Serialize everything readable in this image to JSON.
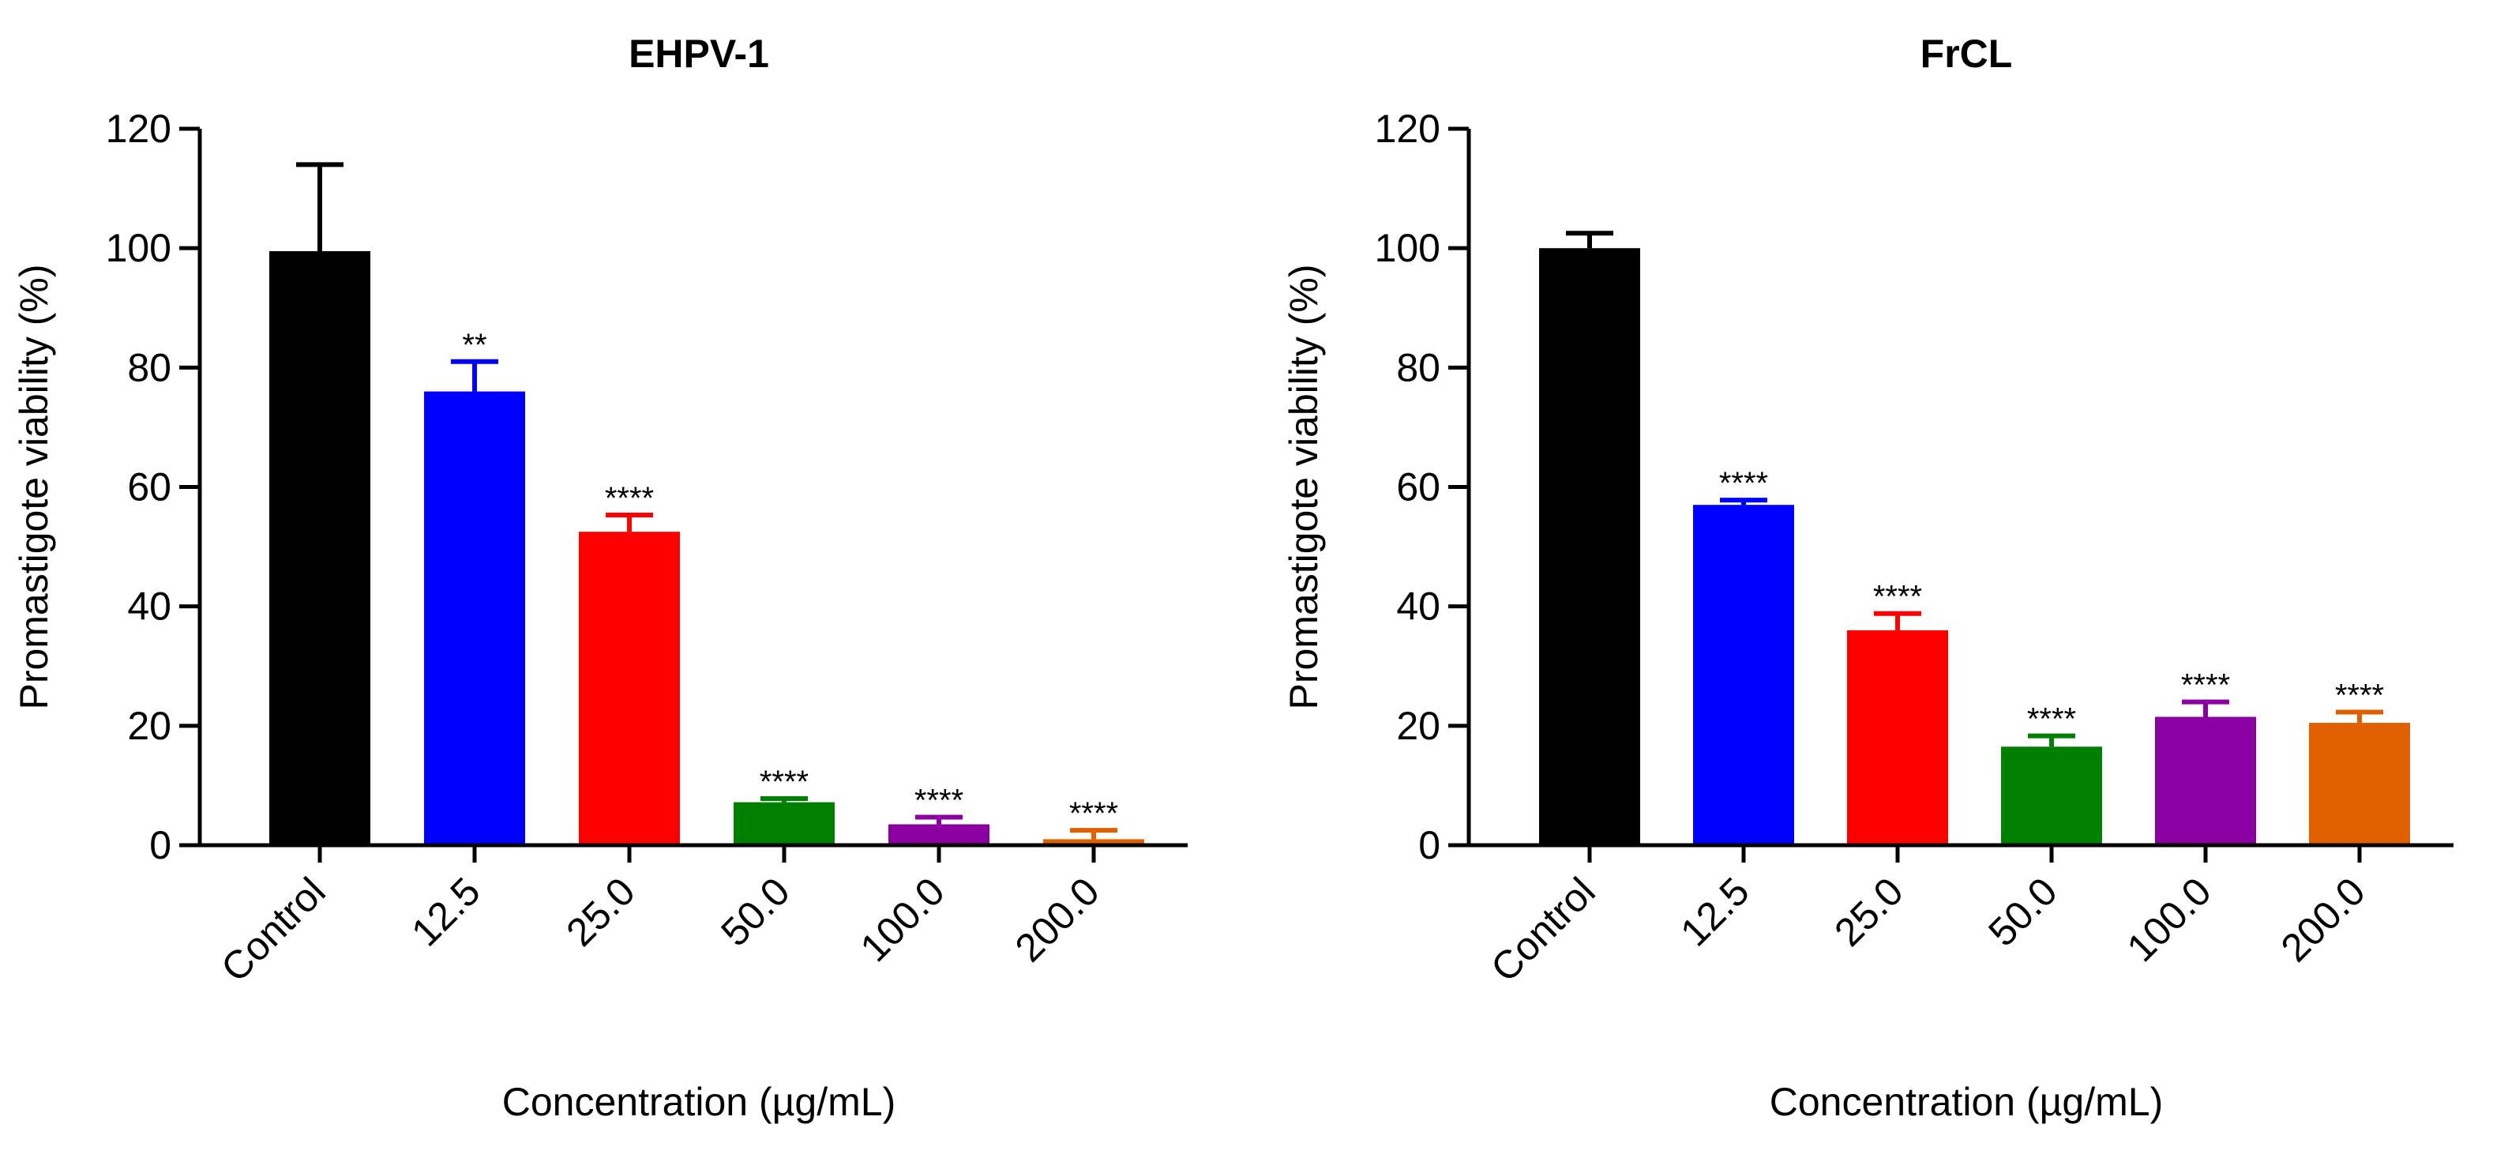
{
  "colors": {
    "axis": "#000000",
    "Control": "#000000",
    "12.5": "#0000FF",
    "25.0": "#FF0000",
    "50.0": "#008000",
    "100.0": "#8B00A0",
    "200.0": "#E06000"
  },
  "chart_data": [
    {
      "type": "bar",
      "title": "EHPV-1",
      "xlabel": "Concentration (µg/mL)",
      "ylabel": "Promastigote viability (%)",
      "ylim": [
        0,
        120
      ],
      "yticks": [
        0,
        20,
        40,
        60,
        80,
        100,
        120
      ],
      "categories": [
        "Control",
        "12.5",
        "25.0",
        "50.0",
        "100.0",
        "200.0"
      ],
      "values": [
        99.5,
        76,
        52.5,
        7.2,
        3.5,
        1
      ],
      "errors": [
        14.5,
        5,
        2.8,
        0.6,
        1.2,
        1.5
      ],
      "significance": [
        "",
        "**",
        "****",
        "****",
        "****",
        "****"
      ]
    },
    {
      "type": "bar",
      "title": "FrCL",
      "xlabel": "Concentration (µg/mL)",
      "ylabel": "Promastigote viability (%)",
      "ylim": [
        0,
        120
      ],
      "yticks": [
        0,
        20,
        40,
        60,
        80,
        100,
        120
      ],
      "categories": [
        "Control",
        "12.5",
        "25.0",
        "50.0",
        "100.0",
        "200.0"
      ],
      "values": [
        100,
        57,
        36,
        16.5,
        21.5,
        20.5
      ],
      "errors": [
        2.5,
        0.8,
        2.8,
        1.8,
        2.5,
        1.8
      ],
      "significance": [
        "",
        "****",
        "****",
        "****",
        "****",
        "****"
      ]
    }
  ]
}
